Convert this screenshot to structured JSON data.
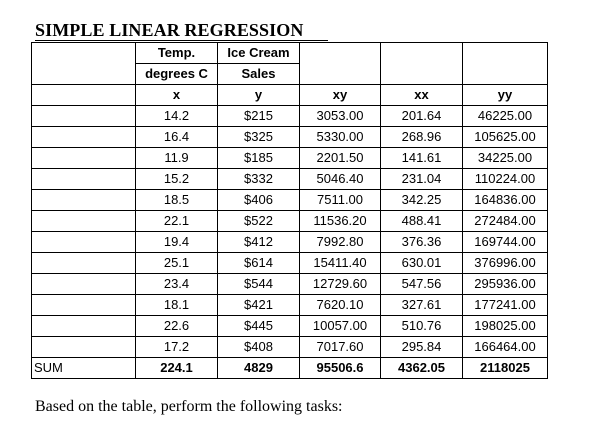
{
  "title": "SIMPLE LINEAR REGRESSION",
  "header": {
    "x_line1": "Temp.",
    "x_line2": "degrees C",
    "y_line1": "Ice Cream",
    "y_line2": "Sales",
    "x": "x",
    "y": "y",
    "xy": "xy",
    "xx": "xx",
    "yy": "yy"
  },
  "rows": [
    {
      "x": "14.2",
      "y": "$215",
      "xy": "3053.00",
      "xx": "201.64",
      "yy": "46225.00"
    },
    {
      "x": "16.4",
      "y": "$325",
      "xy": "5330.00",
      "xx": "268.96",
      "yy": "105625.00"
    },
    {
      "x": "11.9",
      "y": "$185",
      "xy": "2201.50",
      "xx": "141.61",
      "yy": "34225.00"
    },
    {
      "x": "15.2",
      "y": "$332",
      "xy": "5046.40",
      "xx": "231.04",
      "yy": "110224.00"
    },
    {
      "x": "18.5",
      "y": "$406",
      "xy": "7511.00",
      "xx": "342.25",
      "yy": "164836.00"
    },
    {
      "x": "22.1",
      "y": "$522",
      "xy": "11536.20",
      "xx": "488.41",
      "yy": "272484.00"
    },
    {
      "x": "19.4",
      "y": "$412",
      "xy": "7992.80",
      "xx": "376.36",
      "yy": "169744.00"
    },
    {
      "x": "25.1",
      "y": "$614",
      "xy": "15411.40",
      "xx": "630.01",
      "yy": "376996.00"
    },
    {
      "x": "23.4",
      "y": "$544",
      "xy": "12729.60",
      "xx": "547.56",
      "yy": "295936.00"
    },
    {
      "x": "18.1",
      "y": "$421",
      "xy": "7620.10",
      "xx": "327.61",
      "yy": "177241.00"
    },
    {
      "x": "22.6",
      "y": "$445",
      "xy": "10057.00",
      "xx": "510.76",
      "yy": "198025.00"
    },
    {
      "x": "17.2",
      "y": "$408",
      "xy": "7017.60",
      "xx": "295.84",
      "yy": "166464.00"
    }
  ],
  "sum": {
    "label": "SUM",
    "x": "224.1",
    "y": "4829",
    "xy": "95506.6",
    "xx": "4362.05",
    "yy": "2118025"
  },
  "footer": "Based on the table, perform the following tasks:"
}
